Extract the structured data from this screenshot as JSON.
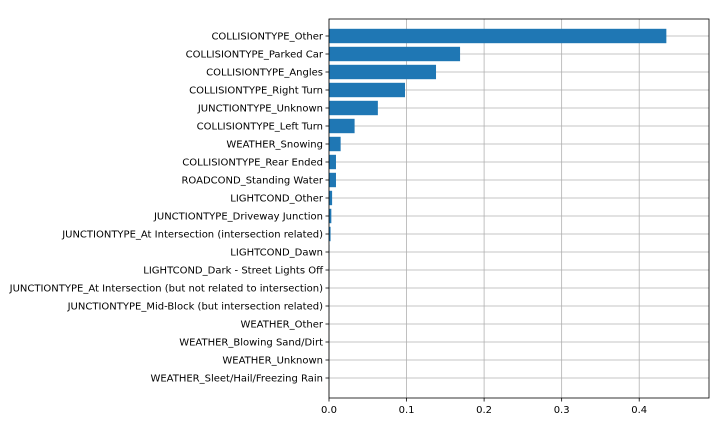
{
  "chart_data": {
    "type": "bar",
    "orientation": "horizontal",
    "title": "",
    "xlabel": "",
    "ylabel": "",
    "categories": [
      "COLLISIONTYPE_Other",
      "COLLISIONTYPE_Parked Car",
      "COLLISIONTYPE_Angles",
      "COLLISIONTYPE_Right Turn",
      "JUNCTIONTYPE_Unknown",
      "COLLISIONTYPE_Left Turn",
      "WEATHER_Snowing",
      "COLLISIONTYPE_Rear Ended",
      "ROADCOND_Standing Water",
      "LIGHTCOND_Other",
      "JUNCTIONTYPE_Driveway Junction",
      "JUNCTIONTYPE_At Intersection (intersection related)",
      "LIGHTCOND_Dawn",
      "LIGHTCOND_Dark - Street Lights Off",
      "JUNCTIONTYPE_At Intersection (but not related to intersection)",
      "JUNCTIONTYPE_Mid-Block (but intersection related)",
      "WEATHER_Other",
      "WEATHER_Blowing Sand/Dirt",
      "WEATHER_Unknown",
      "WEATHER_Sleet/Hail/Freezing Rain"
    ],
    "values": [
      0.435,
      0.169,
      0.138,
      0.098,
      0.063,
      0.033,
      0.015,
      0.009,
      0.009,
      0.004,
      0.003,
      0.002,
      0.0005,
      0.0003,
      0.0002,
      0.0002,
      0.0001,
      0.0001,
      0.0001,
      0.0001
    ],
    "xlim": [
      0,
      0.49
    ],
    "xticks": [
      0.0,
      0.1,
      0.2,
      0.3,
      0.4
    ],
    "xtick_labels": [
      "0.0",
      "0.1",
      "0.2",
      "0.3",
      "0.4"
    ],
    "grid": true,
    "bar_color": "#1f77b4",
    "grid_color": "#b0b0b0"
  }
}
